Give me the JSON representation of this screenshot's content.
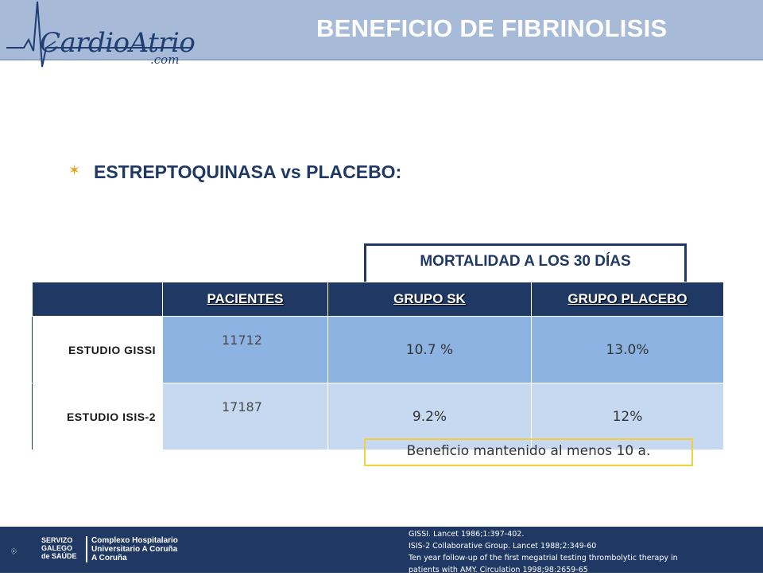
{
  "header": {
    "logo_text": "CardioAtrio",
    "logo_suffix": ".com",
    "title": "BENEFICIO DE FIBRINOLISIS"
  },
  "bullet_heading": "ESTREPTOQUINASA vs PLACEBO:",
  "mortality_label": "MORTALIDAD A LOS 30 DÍAS",
  "table": {
    "headers": [
      "",
      "PACIENTES",
      "GRUPO SK",
      "GRUPO PLACEBO"
    ],
    "rows": [
      {
        "study": "ESTUDIO GISSI",
        "patients": "11712",
        "sk": "10.7 %",
        "placebo": "13.0%"
      },
      {
        "study": "ESTUDIO ISIS-2",
        "patients": "17187",
        "sk": "9.2%",
        "placebo": "12%"
      }
    ]
  },
  "note": "Beneficio mantenido al menos 10 a.",
  "footer": {
    "org_line1": "SERVIZO",
    "org_line2": "GALEGO",
    "org_line3": "de SAÚDE",
    "hosp_line1": "Complexo Hospitalario",
    "hosp_line2": "Universitario A Coruña",
    "hosp_line3": "A Coruña",
    "references": [
      "GISSI. Lancet  1986;1:397-402.",
      "ISIS-2 Collaborative Group. Lancet 1988;2:349-60",
      "Ten year follow-up of the first megatrial testing thrombolytic therapy in",
      "patients with AMY. Circulation 1998;98:2659-65"
    ]
  },
  "colors": {
    "header_bg": "#a7bad8",
    "navy": "#1f3864",
    "row1": "#8db3e2",
    "row2": "#c6d9f1",
    "note_border": "#f0d040",
    "bullet": "#e3a21a"
  }
}
